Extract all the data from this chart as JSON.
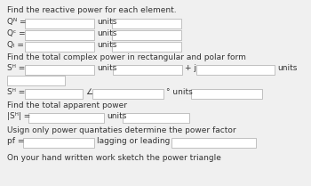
{
  "bg_color": "#f0f0f0",
  "box_color": "#ffffff",
  "box_edge_color": "#aaaaaa",
  "text_color": "#333333",
  "font_size": 6.5,
  "sections": {
    "s1_header": "Find the reactive power for each element.",
    "s1_rows": [
      {
        "label": "Q",
        "sub": "R",
        "sub_style": "normal"
      },
      {
        "label": "Q",
        "sub": "C",
        "sub_style": "normal"
      },
      {
        "label": "Q",
        "sub": "L",
        "sub_style": "normal"
      }
    ],
    "s2_header": "Find the total complex power in rectangular and polar form",
    "s3_header": "Find the total apparent power",
    "s4_header": "Usign only power quantaties determine the power factor",
    "s5_footer": "On your hand written work sketch the power triangle"
  }
}
